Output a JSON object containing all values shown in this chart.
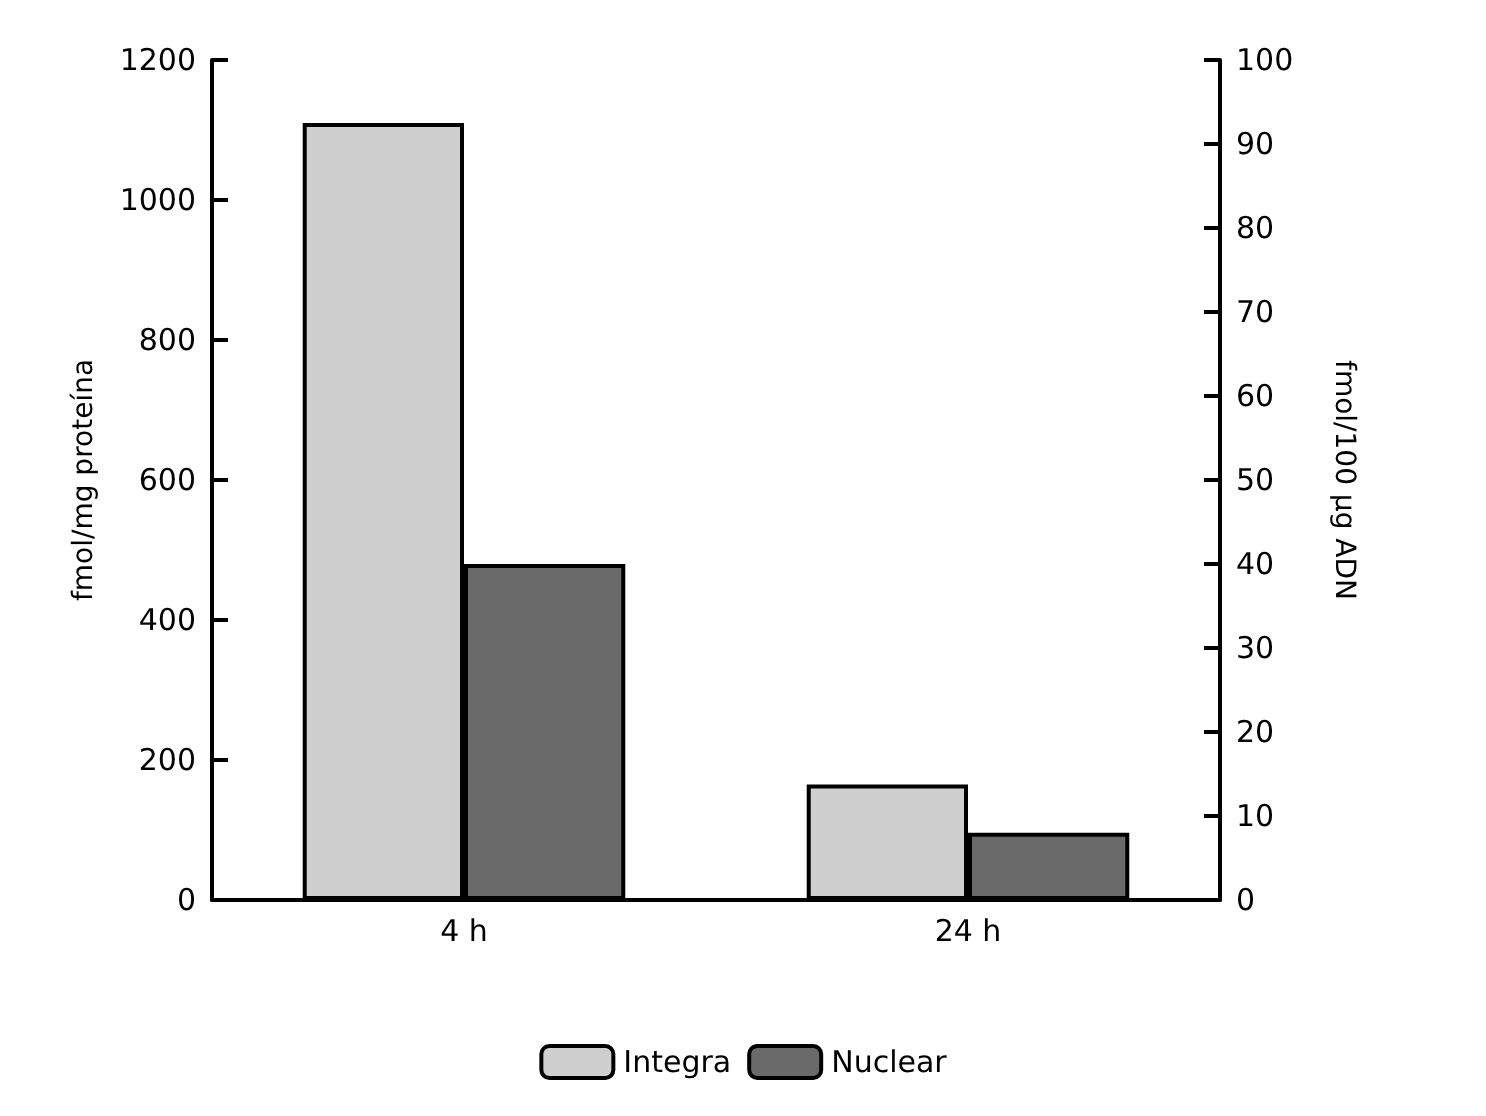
{
  "chart_data": {
    "type": "bar",
    "categories": [
      "4 h",
      "24 h"
    ],
    "ylabel": "fmol/mg proteína",
    "y2label": "fmol/100 µg ADN",
    "ylim": [
      0,
      1200
    ],
    "yticks": [
      0,
      200,
      400,
      600,
      800,
      1000,
      1200
    ],
    "y2lim": [
      0,
      100
    ],
    "y2ticks": [
      0,
      10,
      20,
      30,
      40,
      50,
      60,
      70,
      80,
      90,
      100
    ],
    "series": [
      {
        "name": "Integra",
        "color": "#cfcfcf",
        "values": [
          1110,
          165
        ]
      },
      {
        "name": "Nuclear",
        "color": "#6a6a6a",
        "values": [
          40,
          8
        ],
        "axis": "y2"
      }
    ],
    "grid": false,
    "legend": "bottom"
  }
}
